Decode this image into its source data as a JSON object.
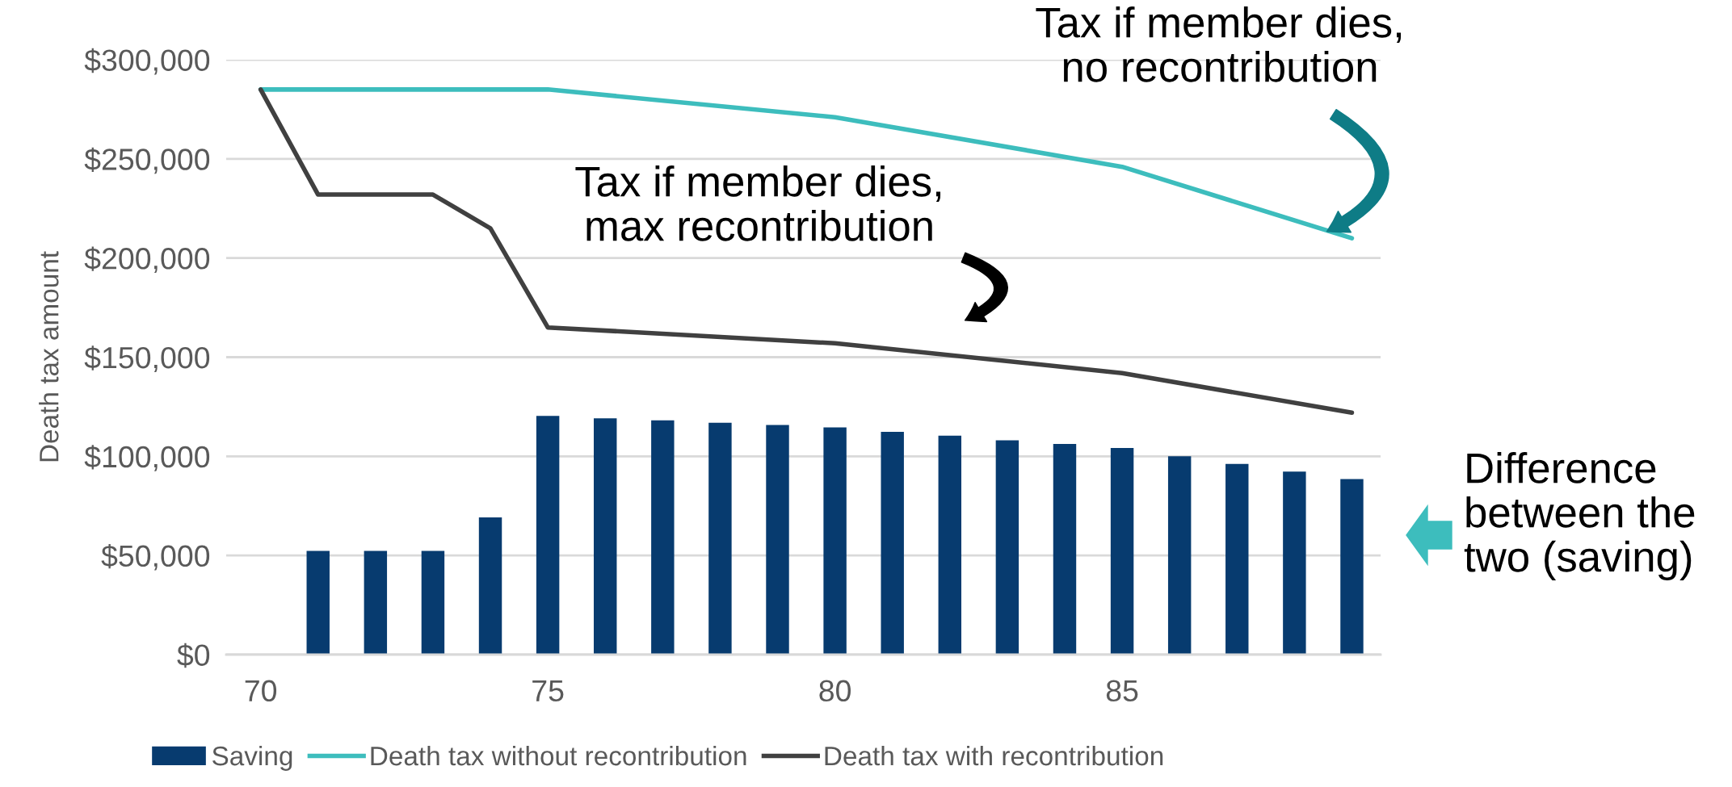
{
  "chart_data": {
    "type": "bar",
    "ylabel": "Death tax amount",
    "x": [
      70,
      71,
      72,
      73,
      74,
      75,
      76,
      77,
      78,
      79,
      80,
      81,
      82,
      83,
      84,
      85,
      86,
      87,
      88,
      89
    ],
    "series": [
      {
        "name": "Saving",
        "color": "#073b6f",
        "values": [
          0,
          52300,
          52300,
          52300,
          69200,
          120400,
          119200,
          118100,
          116900,
          115800,
          114600,
          112300,
          110400,
          108100,
          106200,
          104200,
          100000,
          96200,
          92300,
          88500
        ]
      },
      {
        "name": "Death tax without recontribution",
        "type": "line",
        "color": "#3dbdbd",
        "x": [
          70,
          75,
          80,
          85,
          89
        ],
        "values": [
          285000,
          285000,
          271000,
          246000,
          210000
        ]
      },
      {
        "name": "Death tax with recontribution",
        "type": "line",
        "color": "#404040",
        "x": [
          70,
          71,
          73,
          74,
          75,
          80,
          85,
          89
        ],
        "values": [
          285000,
          232000,
          232000,
          215000,
          165000,
          157000,
          142000,
          122000
        ]
      }
    ],
    "xlim": [
      69.4,
      89.5
    ],
    "xticks": [
      70,
      75,
      80,
      85
    ],
    "ylim": [
      0,
      300000
    ],
    "yticks": [
      {
        "value": 0,
        "label": "$0"
      },
      {
        "value": 50000,
        "label": "$50,000"
      },
      {
        "value": 100000,
        "label": "$100,000"
      },
      {
        "value": 150000,
        "label": "$150,000"
      },
      {
        "value": 200000,
        "label": "$200,000"
      },
      {
        "value": 250000,
        "label": "$250,000"
      },
      {
        "value": 300000,
        "label": "$300,000"
      }
    ],
    "grid": "y",
    "legend": "bottom",
    "marker": "none",
    "line_style": "solid",
    "annotations": [
      "Tax if member dies,\nno recontribution",
      "Tax if member dies,\nmax recontribution",
      "Difference\nbetween the\ntwo (saving)"
    ]
  }
}
